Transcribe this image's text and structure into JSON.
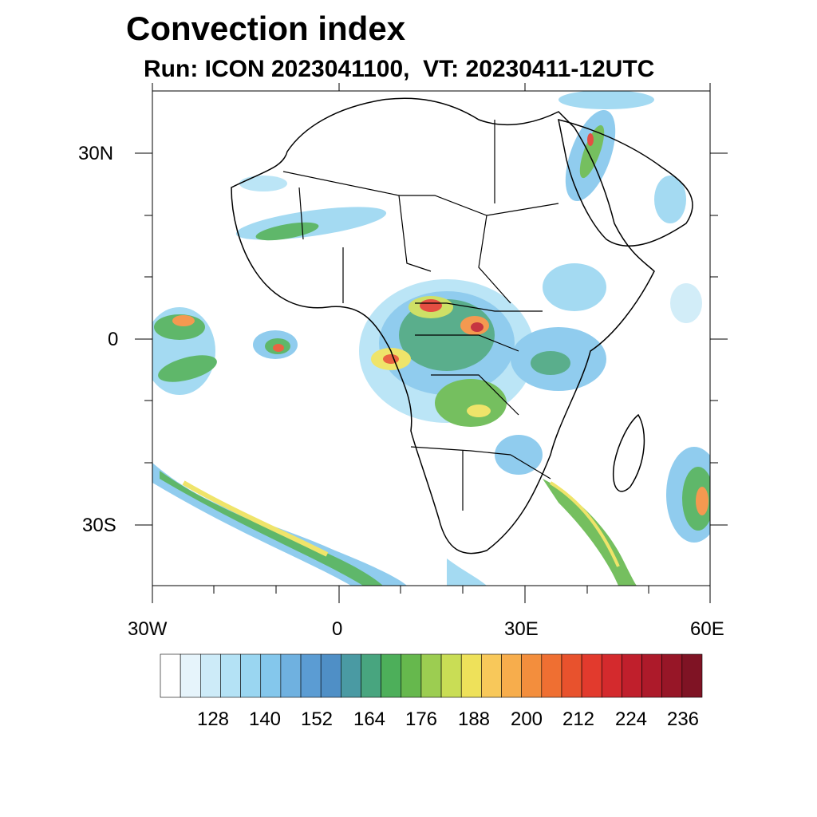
{
  "title": "Convection index",
  "subtitle": "Run: ICON 2023041100,  VT: 20230411-12UTC",
  "axes": {
    "lat_labels": [
      "30N",
      "0",
      "30S"
    ],
    "lon_labels": [
      "30W",
      "0",
      "30E",
      "60E"
    ]
  },
  "colorbar": {
    "labels": [
      "128",
      "140",
      "152",
      "164",
      "176",
      "188",
      "200",
      "212",
      "224",
      "236"
    ],
    "colors": [
      "#ffffff",
      "#e6f4fb",
      "#cdebf8",
      "#b4e2f5",
      "#9ad6f1",
      "#84c7ec",
      "#6fb1e0",
      "#5b9cd3",
      "#4f8fc6",
      "#4a9aa3",
      "#48a57f",
      "#4daf5a",
      "#66b84d",
      "#9ccd51",
      "#c9dd55",
      "#eee15a",
      "#f8c85a",
      "#f7ad4c",
      "#f38e3d",
      "#ef6f32",
      "#e8522d",
      "#e23a2d",
      "#d42a2d",
      "#c01f2c",
      "#ad1a2a",
      "#971627",
      "#7f1324"
    ]
  },
  "chart_data": {
    "type": "map",
    "title": "Convection index",
    "subtitle": "Run: ICON 2023041100,  VT: 20230411-12UTC",
    "variable": "Convection index",
    "model": "ICON",
    "run": "2023041100",
    "valid_time": "20230411-12UTC",
    "lon_range": [
      -30,
      60
    ],
    "lat_range": [
      -40,
      40
    ],
    "lon_ticks": [
      "30W",
      "0",
      "30E",
      "60E"
    ],
    "lat_ticks": [
      "30N",
      "0",
      "30S"
    ],
    "colorbar_levels": [
      128,
      140,
      152,
      164,
      176,
      188,
      200,
      212,
      224,
      236
    ]
  }
}
